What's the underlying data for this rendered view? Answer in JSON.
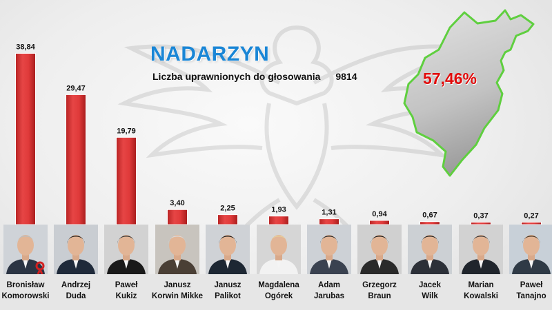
{
  "header": {
    "title": "NADARZYN",
    "eligible_label": "Liczba uprawnionych do głosowania",
    "eligible_value": "9814"
  },
  "turnout": {
    "value": "57,46%",
    "map_fill": "#c4c4c4",
    "map_outline": "#5fcf3f"
  },
  "colors": {
    "bar": "#d93636",
    "bar_dark": "#a81f1f",
    "background": "#efefef"
  },
  "candidates": [
    {
      "first": "Bronisław",
      "last": "Komorowski"
    },
    {
      "first": "Andrzej",
      "last": "Duda"
    },
    {
      "first": "Paweł",
      "last": "Kukiz"
    },
    {
      "first": "Janusz",
      "last": "Korwin Mikke"
    },
    {
      "first": "Janusz",
      "last": "Palikot"
    },
    {
      "first": "Magdalena",
      "last": "Ogórek"
    },
    {
      "first": "Adam",
      "last": "Jarubas"
    },
    {
      "first": "Grzegorz",
      "last": "Braun"
    },
    {
      "first": "Jacek",
      "last": "Wilk"
    },
    {
      "first": "Marian",
      "last": "Kowalski"
    },
    {
      "first": "Paweł",
      "last": "Tanajno"
    }
  ],
  "chart_data": {
    "type": "bar",
    "categories": [
      "Bronisław Komorowski",
      "Andrzej Duda",
      "Paweł Kukiz",
      "Janusz Korwin Mikke",
      "Janusz Palikot",
      "Magdalena Ogórek",
      "Adam Jarubas",
      "Grzegorz Braun",
      "Jacek Wilk",
      "Marian Kowalski",
      "Paweł Tanajno"
    ],
    "values": [
      38.84,
      29.47,
      19.79,
      3.4,
      2.25,
      1.93,
      1.31,
      0.94,
      0.67,
      0.37,
      0.27
    ],
    "labels": [
      "38,84",
      "29,47",
      "19,79",
      "3,40",
      "2,25",
      "1,93",
      "1,31",
      "0,94",
      "0,67",
      "0,37",
      "0,27"
    ],
    "title": "NADARZYN",
    "xlabel": "",
    "ylabel": "",
    "ylim": [
      0,
      40
    ],
    "grid": false,
    "legend": "none"
  }
}
